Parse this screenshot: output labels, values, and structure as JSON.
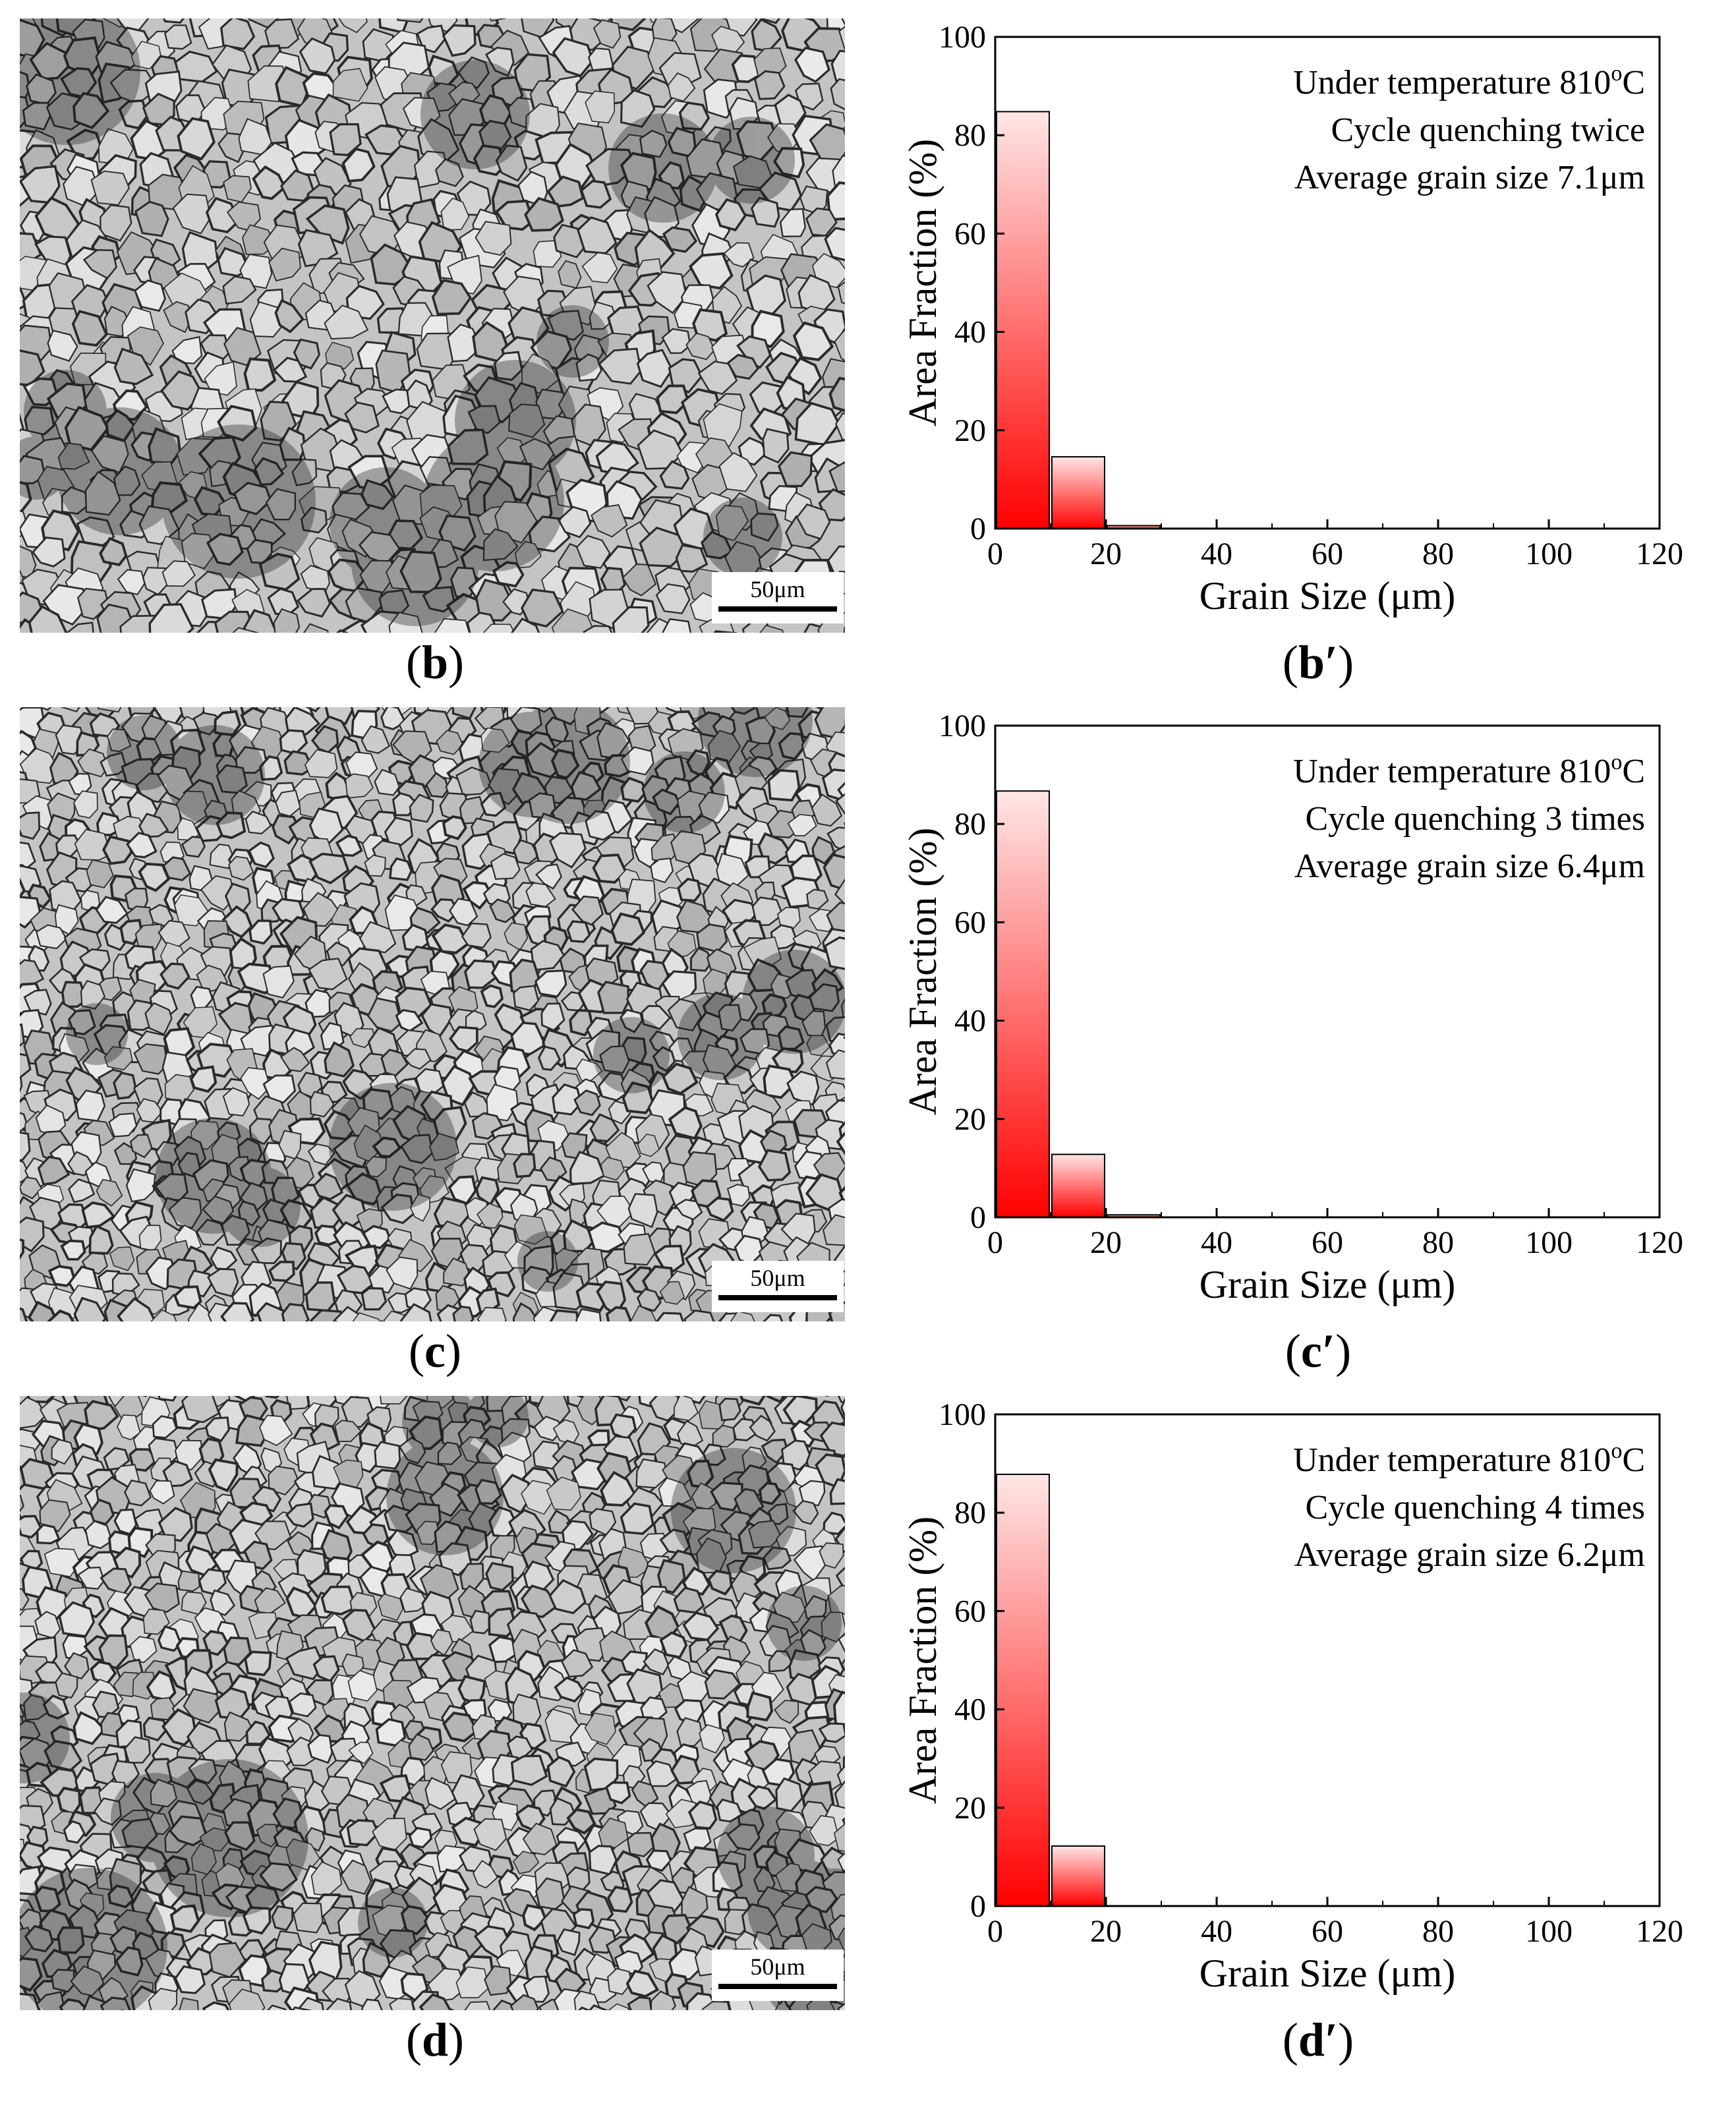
{
  "panels": [
    {
      "micrograph": {
        "label": "b",
        "scale_bar": "50μm"
      },
      "chart_label": "b′",
      "chart_data": {
        "type": "bar",
        "bin_starts": [
          0,
          10,
          20
        ],
        "bin_width": 10,
        "values": [
          84.8,
          14.6,
          0.6
        ],
        "xlabel": "Grain Size (μm)",
        "ylabel": "Area Fraction (%)",
        "xlim": [
          0,
          120
        ],
        "ylim": [
          0,
          100
        ],
        "xticks": [
          0,
          20,
          40,
          60,
          80,
          100,
          120
        ],
        "yticks": [
          0,
          20,
          40,
          60,
          80,
          100
        ],
        "annotations": [
          "Under temperature 810",
          "Cycle quenching twice",
          "Average grain size 7.1μm"
        ],
        "annotation_superscript": "o",
        "annotation_unit": "C",
        "bar_color": "#ff0000",
        "grid": false
      }
    },
    {
      "micrograph": {
        "label": "c",
        "scale_bar": "50μm"
      },
      "chart_label": "c′",
      "chart_data": {
        "type": "bar",
        "bin_starts": [
          0,
          10,
          20
        ],
        "bin_width": 10,
        "values": [
          86.7,
          12.8,
          0.5
        ],
        "xlabel": "Grain Size (μm)",
        "ylabel": "Area Fraction (%)",
        "xlim": [
          0,
          120
        ],
        "ylim": [
          0,
          100
        ],
        "xticks": [
          0,
          20,
          40,
          60,
          80,
          100,
          120
        ],
        "yticks": [
          0,
          20,
          40,
          60,
          80,
          100
        ],
        "annotations": [
          "Under temperature 810",
          "Cycle quenching 3 times",
          "Average grain size 6.4μm"
        ],
        "annotation_superscript": "o",
        "annotation_unit": "C",
        "bar_color": "#ff0000",
        "grid": false
      }
    },
    {
      "micrograph": {
        "label": "d",
        "scale_bar": "50μm"
      },
      "chart_label": "d′",
      "chart_data": {
        "type": "bar",
        "bin_starts": [
          0,
          10
        ],
        "bin_width": 10,
        "values": [
          87.8,
          12.2
        ],
        "xlabel": "Grain Size (μm)",
        "ylabel": "Area Fraction (%)",
        "xlim": [
          0,
          120
        ],
        "ylim": [
          0,
          100
        ],
        "xticks": [
          0,
          20,
          40,
          60,
          80,
          100,
          120
        ],
        "yticks": [
          0,
          20,
          40,
          60,
          80,
          100
        ],
        "annotations": [
          "Under temperature 810",
          "Cycle quenching 4 times",
          "Average grain size 6.2μm"
        ],
        "annotation_superscript": "o",
        "annotation_unit": "C",
        "bar_color": "#ff0000",
        "grid": false
      }
    }
  ]
}
